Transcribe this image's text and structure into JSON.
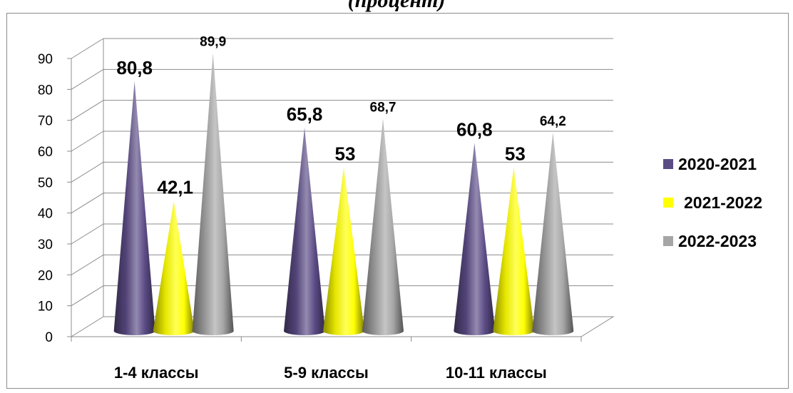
{
  "chart_data": {
    "type": "bar",
    "title": "(процент)",
    "categories": [
      "1-4 классы",
      "5-9 классы",
      "10-11 классы"
    ],
    "series": [
      {
        "name": "2020-2021",
        "color": "#5b4b85",
        "values": [
          80.8,
          65.8,
          60.8
        ],
        "value_labels": [
          "80,8",
          "65,8",
          "60,8"
        ]
      },
      {
        "name": "2021-2022",
        "color": "#ffff00",
        "values": [
          42.1,
          53,
          53
        ],
        "value_labels": [
          "42,1",
          "53",
          "53"
        ]
      },
      {
        "name": "2022-2023",
        "color": "#a6a6a6",
        "values": [
          89.9,
          68.7,
          64.2
        ],
        "value_labels": [
          "89,9",
          "68,7",
          "64,2"
        ]
      }
    ],
    "ylim": [
      0,
      90
    ],
    "yticks": [
      0,
      10,
      20,
      30,
      40,
      50,
      60,
      70,
      80,
      90
    ],
    "grid": true,
    "legend_position": "right",
    "mark_shape": "cone"
  }
}
